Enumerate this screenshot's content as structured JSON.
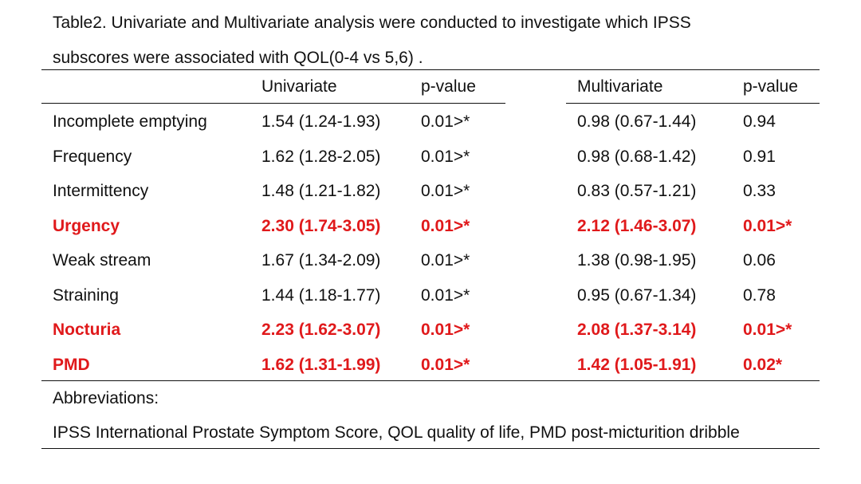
{
  "caption": {
    "line1": "Table2. Univariate and Multivariate analysis were conducted to investigate which IPSS",
    "line2": "subscores were associated with QOL(0-4 vs 5,6) ."
  },
  "header": {
    "col1": "",
    "col2": "Univariate",
    "col3": "p-value",
    "col4": "Multivariate",
    "col5": "p-value"
  },
  "rows": [
    {
      "label": "Incomplete emptying",
      "uni": "1.54 (1.24-1.93)",
      "uni_p": "0.01>*",
      "multi": "0.98 (0.67-1.44)",
      "multi_p": "0.94",
      "highlight": false
    },
    {
      "label": "Frequency",
      "uni": "1.62 (1.28-2.05)",
      "uni_p": "0.01>*",
      "multi": "0.98 (0.68-1.42)",
      "multi_p": "0.91",
      "highlight": false
    },
    {
      "label": "Intermittency",
      "uni": "1.48 (1.21-1.82)",
      "uni_p": "0.01>*",
      "multi": "0.83 (0.57-1.21)",
      "multi_p": "0.33",
      "highlight": false
    },
    {
      "label": "Urgency",
      "uni": "2.30 (1.74-3.05)",
      "uni_p": "0.01>*",
      "multi": "2.12 (1.46-3.07)",
      "multi_p": "0.01>*",
      "highlight": true
    },
    {
      "label": "Weak stream",
      "uni": "1.67 (1.34-2.09)",
      "uni_p": "0.01>*",
      "multi": "1.38 (0.98-1.95)",
      "multi_p": "0.06",
      "highlight": false
    },
    {
      "label": "Straining",
      "uni": "1.44 (1.18-1.77)",
      "uni_p": "0.01>*",
      "multi": "0.95 (0.67-1.34)",
      "multi_p": "0.78",
      "highlight": false
    },
    {
      "label": "Nocturia",
      "uni": "2.23 (1.62-3.07)",
      "uni_p": "0.01>*",
      "multi": "2.08 (1.37-3.14)",
      "multi_p": "0.01>*",
      "highlight": true
    },
    {
      "label": "PMD",
      "uni": "1.62 (1.31-1.99)",
      "uni_p": "0.01>*",
      "multi": "1.42 (1.05-1.91)",
      "multi_p": "0.02*",
      "highlight": true
    }
  ],
  "footer": {
    "abbrev_title": "Abbreviations:",
    "abbrev_text": "IPSS International Prostate Symptom Score, QOL quality of life, PMD post-micturition dribble"
  },
  "colors": {
    "highlight": "#e0191b",
    "text": "#111111",
    "rule": "#111111"
  }
}
